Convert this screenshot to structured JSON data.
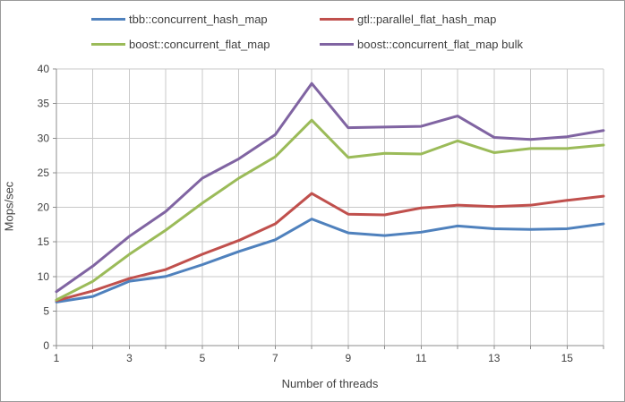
{
  "window": {
    "background": "#ffffff",
    "border_color": "#9a9a9a"
  },
  "chart_data": {
    "type": "line",
    "title": "",
    "xlabel": "Number of threads",
    "ylabel": "Mops/sec",
    "xlim": [
      1,
      16
    ],
    "ylim": [
      0,
      40
    ],
    "x": [
      1,
      2,
      3,
      4,
      5,
      6,
      7,
      8,
      9,
      10,
      11,
      12,
      13,
      14,
      15,
      16
    ],
    "x_labeled_ticks": [
      1,
      3,
      5,
      7,
      9,
      11,
      13,
      15
    ],
    "y_ticks": [
      0,
      5,
      10,
      15,
      20,
      25,
      30,
      35,
      40
    ],
    "grid": {
      "vertical": "every 1 thread",
      "horizontal": "every 5 Mops/sec"
    },
    "legend_position": "top",
    "series": [
      {
        "name": "tbb::concurrent_hash_map",
        "color": "#4f81bd",
        "values": [
          6.3,
          7.1,
          9.3,
          10.0,
          11.7,
          13.6,
          15.3,
          18.3,
          16.3,
          15.9,
          16.4,
          17.3,
          16.9,
          16.8,
          16.9,
          17.6
        ]
      },
      {
        "name": "gtl::parallel_flat_hash_map",
        "color": "#c0504d",
        "values": [
          6.5,
          7.9,
          9.7,
          11.0,
          13.2,
          15.2,
          17.6,
          22.0,
          19.0,
          18.9,
          19.9,
          20.3,
          20.1,
          20.3,
          21.0,
          21.6
        ]
      },
      {
        "name": "boost::concurrent_flat_map",
        "color": "#9bbb59",
        "values": [
          6.6,
          9.3,
          13.2,
          16.7,
          20.6,
          24.2,
          27.3,
          32.6,
          27.2,
          27.8,
          27.7,
          29.6,
          27.9,
          28.5,
          28.5,
          29.0
        ]
      },
      {
        "name": "boost::concurrent_flat_map bulk",
        "color": "#8064a2",
        "values": [
          7.8,
          11.5,
          15.8,
          19.4,
          24.2,
          27.0,
          30.5,
          37.9,
          31.5,
          31.6,
          31.7,
          33.2,
          30.1,
          29.8,
          30.2,
          31.1
        ]
      }
    ],
    "style_colors": {
      "gridline": "#c8c8c8",
      "axis_line": "#8c8c8c",
      "tick_text": "#3f3f3f"
    }
  }
}
